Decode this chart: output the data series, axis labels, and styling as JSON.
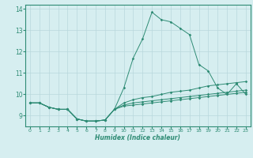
{
  "xlabel": "Humidex (Indice chaleur)",
  "x_values": [
    0,
    1,
    2,
    3,
    4,
    5,
    6,
    7,
    8,
    9,
    10,
    11,
    12,
    13,
    14,
    15,
    16,
    17,
    18,
    19,
    20,
    21,
    22,
    23
  ],
  "line1": [
    9.6,
    9.6,
    9.4,
    9.3,
    9.3,
    8.85,
    8.75,
    8.75,
    8.8,
    9.3,
    10.3,
    11.7,
    12.6,
    13.85,
    13.5,
    13.4,
    13.1,
    12.8,
    11.4,
    11.1,
    10.3,
    10.0,
    10.5,
    10.0
  ],
  "line2": [
    9.6,
    9.6,
    9.4,
    9.3,
    9.3,
    8.85,
    8.75,
    8.75,
    8.8,
    9.3,
    9.6,
    9.75,
    9.85,
    9.9,
    10.0,
    10.1,
    10.15,
    10.2,
    10.3,
    10.4,
    10.45,
    10.5,
    10.55,
    10.6
  ],
  "line3": [
    9.6,
    9.6,
    9.4,
    9.3,
    9.3,
    8.85,
    8.75,
    8.75,
    8.8,
    9.3,
    9.5,
    9.6,
    9.65,
    9.7,
    9.75,
    9.8,
    9.85,
    9.9,
    9.95,
    10.0,
    10.05,
    10.1,
    10.15,
    10.2
  ],
  "line4": [
    9.6,
    9.6,
    9.4,
    9.3,
    9.3,
    8.85,
    8.75,
    8.75,
    8.8,
    9.3,
    9.45,
    9.5,
    9.55,
    9.6,
    9.65,
    9.7,
    9.75,
    9.8,
    9.85,
    9.9,
    9.95,
    10.0,
    10.05,
    10.1
  ],
  "line_color": "#2e8b74",
  "bg_color": "#d6eef0",
  "grid_color": "#b8d8dc",
  "ylim": [
    8.5,
    14.2
  ],
  "xlim": [
    -0.5,
    23.5
  ],
  "yticks": [
    9,
    10,
    11,
    12,
    13,
    14
  ],
  "xticks": [
    0,
    1,
    2,
    3,
    4,
    5,
    6,
    7,
    8,
    9,
    10,
    11,
    12,
    13,
    14,
    15,
    16,
    17,
    18,
    19,
    20,
    21,
    22,
    23
  ]
}
